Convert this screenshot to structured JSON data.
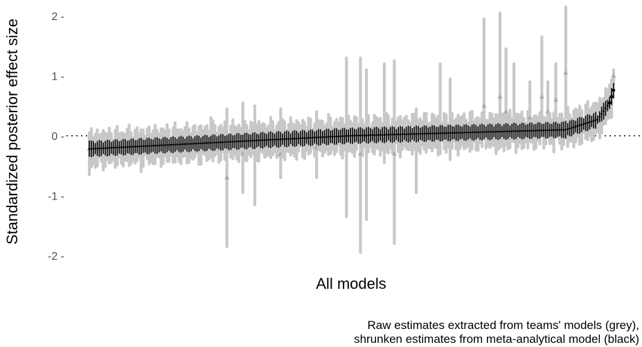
{
  "chart_data": {
    "type": "errorbar",
    "ylabel": "Standardized posterior effect size",
    "xlabel": "All models",
    "caption_lines": [
      "Raw estimates extracted from teams' models (grey),",
      "shrunken estimates from meta-analytical model (black)"
    ],
    "ylim": [
      -2.2,
      2.2
    ],
    "yticks": [
      2,
      1,
      0,
      -1,
      -2
    ],
    "ytick_labels": [
      "2 -",
      "1 -",
      "0 -",
      "-1 -",
      "-2 -"
    ],
    "n_models": 264,
    "reference_line": 0,
    "grid": false,
    "colors": {
      "raw": "#c8c8c8",
      "raw_point": "#a8a8a8",
      "shrunken": "#000000",
      "refline": "#000000"
    },
    "series": [
      {
        "name": "Raw estimates extracted from teams' models (grey)",
        "interval_summary": [
          {
            "x": 1,
            "estimate": -0.22,
            "low": -0.65,
            "high": 0.05
          },
          {
            "x": 27,
            "estimate": -0.05,
            "low": -0.6,
            "high": 0.1
          },
          {
            "x": 62,
            "estimate": -0.05,
            "low": -0.35,
            "high": 0.3
          },
          {
            "x": 70,
            "estimate": -0.7,
            "low": -1.85,
            "high": 0.45
          },
          {
            "x": 78,
            "estimate": -0.3,
            "low": -0.95,
            "high": 0.55
          },
          {
            "x": 84,
            "estimate": -0.2,
            "low": -1.15,
            "high": 0.5
          },
          {
            "x": 97,
            "estimate": -0.3,
            "low": -0.7,
            "high": 0.45
          },
          {
            "x": 115,
            "estimate": -0.2,
            "low": -0.7,
            "high": 0.4
          },
          {
            "x": 130,
            "estimate": 0.0,
            "low": -1.35,
            "high": 1.3
          },
          {
            "x": 137,
            "estimate": -0.3,
            "low": -1.95,
            "high": 1.3
          },
          {
            "x": 140,
            "estimate": 0.0,
            "low": -1.4,
            "high": 1.1
          },
          {
            "x": 149,
            "estimate": -0.05,
            "low": -0.45,
            "high": 1.2
          },
          {
            "x": 154,
            "estimate": -0.3,
            "low": -1.8,
            "high": 1.25
          },
          {
            "x": 165,
            "estimate": 0.0,
            "low": -0.95,
            "high": 0.45
          },
          {
            "x": 177,
            "estimate": 0.1,
            "low": -0.3,
            "high": 1.2
          },
          {
            "x": 182,
            "estimate": 0.0,
            "low": -0.4,
            "high": 0.95
          },
          {
            "x": 199,
            "estimate": 0.5,
            "low": 0.0,
            "high": 1.95
          },
          {
            "x": 207,
            "estimate": 0.65,
            "low": -0.2,
            "high": 2.05
          },
          {
            "x": 210,
            "estimate": 0.4,
            "low": -0.15,
            "high": 1.45
          },
          {
            "x": 214,
            "estimate": 0.2,
            "low": -0.1,
            "high": 1.2
          },
          {
            "x": 222,
            "estimate": 0.3,
            "low": -0.1,
            "high": 0.9
          },
          {
            "x": 228,
            "estimate": 0.65,
            "low": 0.1,
            "high": 1.65
          },
          {
            "x": 231,
            "estimate": 0.4,
            "low": 0.0,
            "high": 0.9
          },
          {
            "x": 235,
            "estimate": 0.6,
            "low": 0.05,
            "high": 1.2
          },
          {
            "x": 240,
            "estimate": 1.05,
            "low": 0.3,
            "high": 2.15
          },
          {
            "x": 255,
            "estimate": 0.3,
            "low": 0.05,
            "high": 0.55
          },
          {
            "x": 262,
            "estimate": 0.55,
            "low": 0.3,
            "high": 0.85
          },
          {
            "x": 264,
            "estimate": 1.0,
            "low": 0.85,
            "high": 1.1
          }
        ]
      },
      {
        "name": "shrunken estimates from meta-analytical model (black)",
        "interval_summary": [
          {
            "x": 1,
            "estimate": -0.22,
            "low": -0.35,
            "high": -0.08
          },
          {
            "x": 132,
            "estimate": 0.0,
            "low": -0.13,
            "high": 0.13
          },
          {
            "x": 240,
            "estimate": 0.1,
            "low": -0.05,
            "high": 0.25
          },
          {
            "x": 256,
            "estimate": 0.27,
            "low": 0.2,
            "high": 0.34
          },
          {
            "x": 262,
            "estimate": 0.55,
            "low": 0.45,
            "high": 0.65
          },
          {
            "x": 264,
            "estimate": 0.76,
            "low": 0.62,
            "high": 0.88
          }
        ]
      }
    ]
  }
}
